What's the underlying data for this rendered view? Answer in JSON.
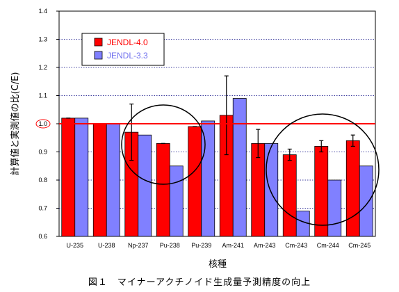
{
  "chart_data": {
    "type": "bar",
    "categories": [
      "U-235",
      "U-238",
      "Np-237",
      "Pu-238",
      "Pu-239",
      "Am-241",
      "Am-243",
      "Cm-243",
      "Cm-244",
      "Cm-245"
    ],
    "series": [
      {
        "name": "JENDL-4.0",
        "color": "#ff0000",
        "values": [
          1.02,
          1.0,
          0.97,
          0.93,
          0.99,
          1.03,
          0.93,
          0.89,
          0.92,
          0.94
        ],
        "error": [
          0.0,
          0.0,
          0.1,
          0.0,
          0.0,
          0.14,
          0.05,
          0.02,
          0.02,
          0.02
        ]
      },
      {
        "name": "JENDL-3.3",
        "color": "#8080ff",
        "values": [
          1.02,
          1.0,
          0.96,
          0.85,
          1.01,
          1.09,
          0.93,
          0.69,
          0.8,
          0.85
        ]
      }
    ],
    "ylabel": "計算値と実測値の比(C/E)",
    "xlabel": "核種",
    "ylim": [
      0.6,
      1.4
    ],
    "yticks": [
      "0.6",
      "0.7",
      "0.8",
      "0.9",
      "1.0",
      "1.1",
      "1.2",
      "1.3",
      "1.4"
    ],
    "reference_line": 1.0,
    "grid": true,
    "legend_position": "top-left"
  },
  "caption": "図１　マイナーアクチノイド生成量予測精度の向上"
}
